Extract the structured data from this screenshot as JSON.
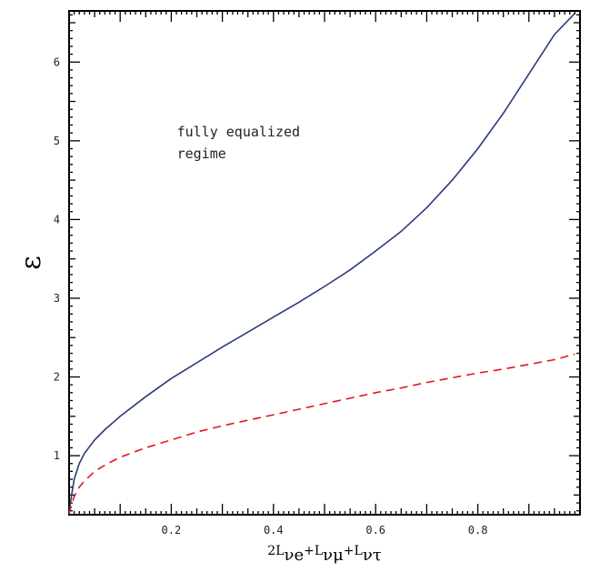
{
  "chart_data": {
    "type": "line",
    "title": "",
    "xlabel": {
      "parts": [
        {
          "text": "2L",
          "sub": "νe"
        },
        {
          "text": "+L",
          "sub": "νμ"
        },
        {
          "text": "+L",
          "sub": "ντ"
        }
      ]
    },
    "ylabel": "ε",
    "xlim": [
      0.0,
      1.0
    ],
    "ylim": [
      0.25,
      6.65
    ],
    "x_ticks": [
      0.2,
      0.4,
      0.6,
      0.8
    ],
    "x_tick_labels": [
      "0.2",
      "0.4",
      "0.6",
      "0.8"
    ],
    "y_ticks": [
      1,
      2,
      3,
      4,
      5,
      6
    ],
    "y_tick_labels": [
      "1",
      "2",
      "3",
      "4",
      "5",
      "6"
    ],
    "annotation": {
      "lines": [
        "fully equalized",
        "regime"
      ],
      "x": 0.3,
      "y": 5.1
    },
    "series": [
      {
        "style": "solid",
        "color": "#2b3a7a",
        "x": [
          0.0,
          0.005,
          0.01,
          0.02,
          0.03,
          0.05,
          0.07,
          0.1,
          0.15,
          0.2,
          0.25,
          0.3,
          0.35,
          0.4,
          0.45,
          0.5,
          0.55,
          0.6,
          0.65,
          0.7,
          0.75,
          0.8,
          0.85,
          0.9,
          0.95,
          0.99
        ],
        "y": [
          0.28,
          0.5,
          0.7,
          0.9,
          1.03,
          1.2,
          1.33,
          1.5,
          1.75,
          1.98,
          2.18,
          2.38,
          2.57,
          2.76,
          2.95,
          3.15,
          3.36,
          3.6,
          3.85,
          4.15,
          4.5,
          4.9,
          5.35,
          5.85,
          6.35,
          6.62
        ]
      },
      {
        "style": "dashed",
        "color": "#e0171f",
        "x": [
          0.0,
          0.005,
          0.01,
          0.02,
          0.03,
          0.05,
          0.07,
          0.1,
          0.15,
          0.2,
          0.25,
          0.3,
          0.35,
          0.4,
          0.45,
          0.5,
          0.55,
          0.6,
          0.65,
          0.7,
          0.75,
          0.8,
          0.85,
          0.9,
          0.95,
          0.99
        ],
        "y": [
          0.26,
          0.38,
          0.48,
          0.6,
          0.68,
          0.8,
          0.88,
          0.98,
          1.1,
          1.2,
          1.3,
          1.38,
          1.45,
          1.52,
          1.59,
          1.66,
          1.73,
          1.8,
          1.86,
          1.93,
          1.99,
          2.05,
          2.1,
          2.16,
          2.22,
          2.29
        ]
      }
    ]
  }
}
